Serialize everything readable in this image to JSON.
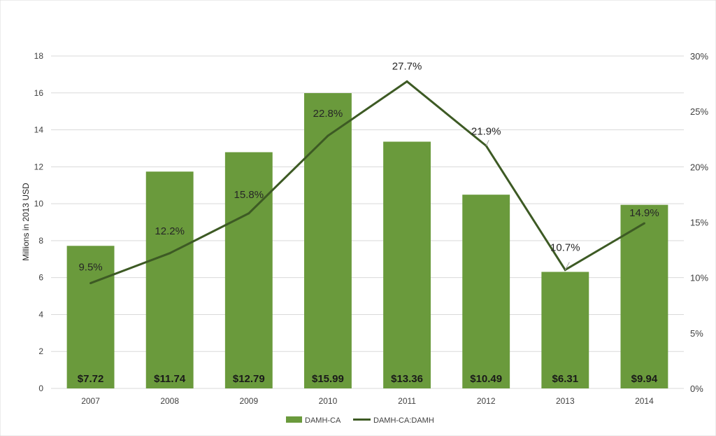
{
  "chart_data": {
    "type": "bar+line",
    "categories": [
      "2007",
      "2008",
      "2009",
      "2010",
      "2011",
      "2012",
      "2013",
      "2014"
    ],
    "series": [
      {
        "name": "DAMH-CA",
        "type": "bar",
        "axis": "left",
        "values": [
          7.72,
          11.74,
          12.79,
          15.99,
          13.36,
          10.49,
          6.31,
          9.94
        ],
        "labels": [
          "$7.72",
          "$11.74",
          "$12.79",
          "$15.99",
          "$13.36",
          "$10.49",
          "$6.31",
          "$9.94"
        ]
      },
      {
        "name": "DAMH-CA:DAMH",
        "type": "line",
        "axis": "right",
        "values": [
          9.5,
          12.2,
          15.8,
          22.8,
          27.7,
          21.9,
          10.7,
          14.9
        ],
        "labels": [
          "9.5%",
          "12.2%",
          "15.8%",
          "22.8%",
          "27.7%",
          "21.9%",
          "10.7%",
          "14.9%"
        ]
      }
    ],
    "ylabel": "Millions in 2013 USD",
    "ylim": [
      0,
      18
    ],
    "yticks": [
      "0",
      "2",
      "4",
      "6",
      "8",
      "10",
      "12",
      "14",
      "16",
      "18"
    ],
    "ylim_right": [
      0,
      30
    ],
    "yticks_right": [
      "0%",
      "5%",
      "10%",
      "15%",
      "20%",
      "25%",
      "30%"
    ],
    "grid": true,
    "legend": "bottom-center",
    "colors": {
      "bar": "#6a9a3c",
      "line": "#3d5a24",
      "grid": "#d9d9d9"
    }
  }
}
